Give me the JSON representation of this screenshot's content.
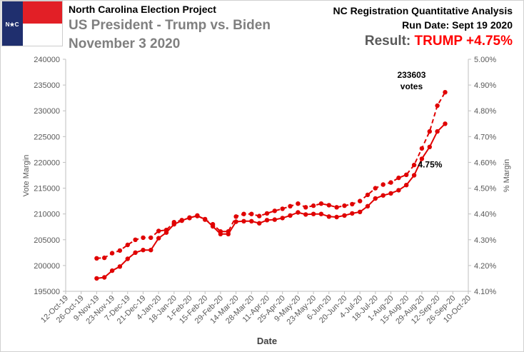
{
  "header": {
    "project": "North Carolina Election Project",
    "race": "US President  - Trump vs. Biden",
    "date": "November 3 2020",
    "analysis_title": "NC Registration Quantitative Analysis",
    "run_date": "Run Date: Sept 19 2020",
    "result_label": "Result: ",
    "result_value": "TRUMP +4.75%",
    "flag_text": "N★C",
    "colors": {
      "result": "#ff0000",
      "series": "#e00000",
      "flag_blue": "#1f2f6e",
      "flag_red": "#e21f26"
    }
  },
  "chart_data": {
    "type": "line",
    "title": "",
    "xlabel": "Date",
    "ylabel": "Vote Margin",
    "y2label": "% Margin",
    "ylim": [
      195000,
      240000
    ],
    "y2lim": [
      4.1,
      5.0
    ],
    "yticks": [
      "195000",
      "200000",
      "205000",
      "210000",
      "215000",
      "220000",
      "225000",
      "230000",
      "235000",
      "240000"
    ],
    "y2ticks": [
      "4.10%",
      "4.20%",
      "4.30%",
      "4.40%",
      "4.50%",
      "4.60%",
      "4.70%",
      "4.80%",
      "4.90%",
      "5.00%"
    ],
    "xticks": [
      "12-Oct-19",
      "26-Oct-19",
      "9-Nov-19",
      "23-Nov-19",
      "7-Dec-19",
      "21-Dec-19",
      "4-Jan-20",
      "18-Jan-20",
      "1-Feb-20",
      "15-Feb-20",
      "29-Feb-20",
      "14-Mar-20",
      "28-Mar-20",
      "11-Apr-20",
      "25-Apr-20",
      "9-May-20",
      "23-May-20",
      "6-Jun-20",
      "20-Jun-20",
      "4-Jul-20",
      "18-Jul-20",
      "1-Aug-20",
      "15-Aug-20",
      "29-Aug-20",
      "12-Sep-20",
      "26-Sep-20",
      "10-Oct-20"
    ],
    "grid": false,
    "x": [
      "2019-11-09",
      "2019-11-16",
      "2019-11-23",
      "2019-11-30",
      "2019-12-07",
      "2019-12-14",
      "2019-12-21",
      "2019-12-28",
      "2020-01-04",
      "2020-01-11",
      "2020-01-18",
      "2020-01-25",
      "2020-02-01",
      "2020-02-08",
      "2020-02-15",
      "2020-02-22",
      "2020-02-29",
      "2020-03-07",
      "2020-03-14",
      "2020-03-21",
      "2020-03-28",
      "2020-04-04",
      "2020-04-11",
      "2020-04-18",
      "2020-04-25",
      "2020-05-02",
      "2020-05-09",
      "2020-05-16",
      "2020-05-23",
      "2020-05-30",
      "2020-06-06",
      "2020-06-13",
      "2020-06-20",
      "2020-06-27",
      "2020-07-04",
      "2020-07-11",
      "2020-07-18",
      "2020-07-25",
      "2020-08-01",
      "2020-08-08",
      "2020-08-15",
      "2020-08-22",
      "2020-08-29",
      "2020-09-05",
      "2020-09-12",
      "2020-09-19"
    ],
    "series": [
      {
        "axis": "left",
        "style": "dashed",
        "values": [
          201400,
          201500,
          202400,
          202900,
          204000,
          205000,
          205400,
          205400,
          206700,
          206900,
          208400,
          208800,
          209200,
          209700,
          208900,
          208000,
          206600,
          206600,
          209500,
          210000,
          210000,
          209600,
          210100,
          210600,
          211000,
          211500,
          212000,
          211300,
          211600,
          212000,
          211700,
          211300,
          211600,
          211900,
          212500,
          213700,
          215000,
          215700,
          216100,
          217000,
          217600,
          219500,
          222700,
          226000,
          231000,
          233603
        ]
      },
      {
        "axis": "left",
        "style": "solid",
        "values": [
          197500,
          197700,
          199000,
          199800,
          201300,
          202500,
          203000,
          203000,
          205300,
          206400,
          208000,
          208700,
          209300,
          209600,
          209000,
          207600,
          206100,
          206100,
          208500,
          208600,
          208600,
          208200,
          208800,
          208900,
          209200,
          209700,
          210300,
          209900,
          210000,
          210000,
          209500,
          209400,
          209700,
          210100,
          210400,
          211500,
          213000,
          213600,
          214000,
          214600,
          215600,
          217500,
          220700,
          223000,
          226000,
          227500
        ]
      }
    ],
    "annotations": [
      {
        "text": "233603",
        "series": 0,
        "point": 45
      },
      {
        "text": "votes",
        "series": 0,
        "point": 45
      },
      {
        "text": "4.75%",
        "series": 1,
        "point": 45
      }
    ]
  }
}
